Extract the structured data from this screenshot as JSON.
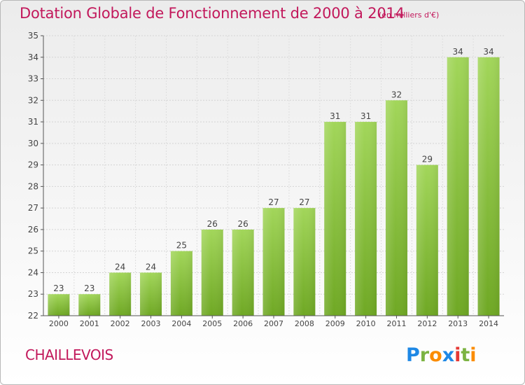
{
  "chart_data": {
    "type": "bar",
    "title": "Dotation Globale de Fonctionnement de 2000 à 2014",
    "subtitle": "(en milliers d'€)",
    "categories": [
      "2000",
      "2001",
      "2002",
      "2003",
      "2004",
      "2005",
      "2006",
      "2007",
      "2008",
      "2009",
      "2010",
      "2011",
      "2012",
      "2013",
      "2014"
    ],
    "values": [
      23,
      23,
      24,
      24,
      25,
      26,
      26,
      27,
      27,
      31,
      31,
      32,
      29,
      34,
      34
    ],
    "xlabel": "",
    "ylabel": "",
    "ylim": [
      22,
      35
    ],
    "yticks": [
      22,
      23,
      24,
      25,
      26,
      27,
      28,
      29,
      30,
      31,
      32,
      33,
      34,
      35
    ],
    "grid": true,
    "bar_color": "#8cc63f"
  },
  "commune": "CHAILLEVOIS",
  "logo": {
    "letters": [
      "P",
      "r",
      "o",
      "x",
      "i",
      "t",
      "i"
    ]
  }
}
